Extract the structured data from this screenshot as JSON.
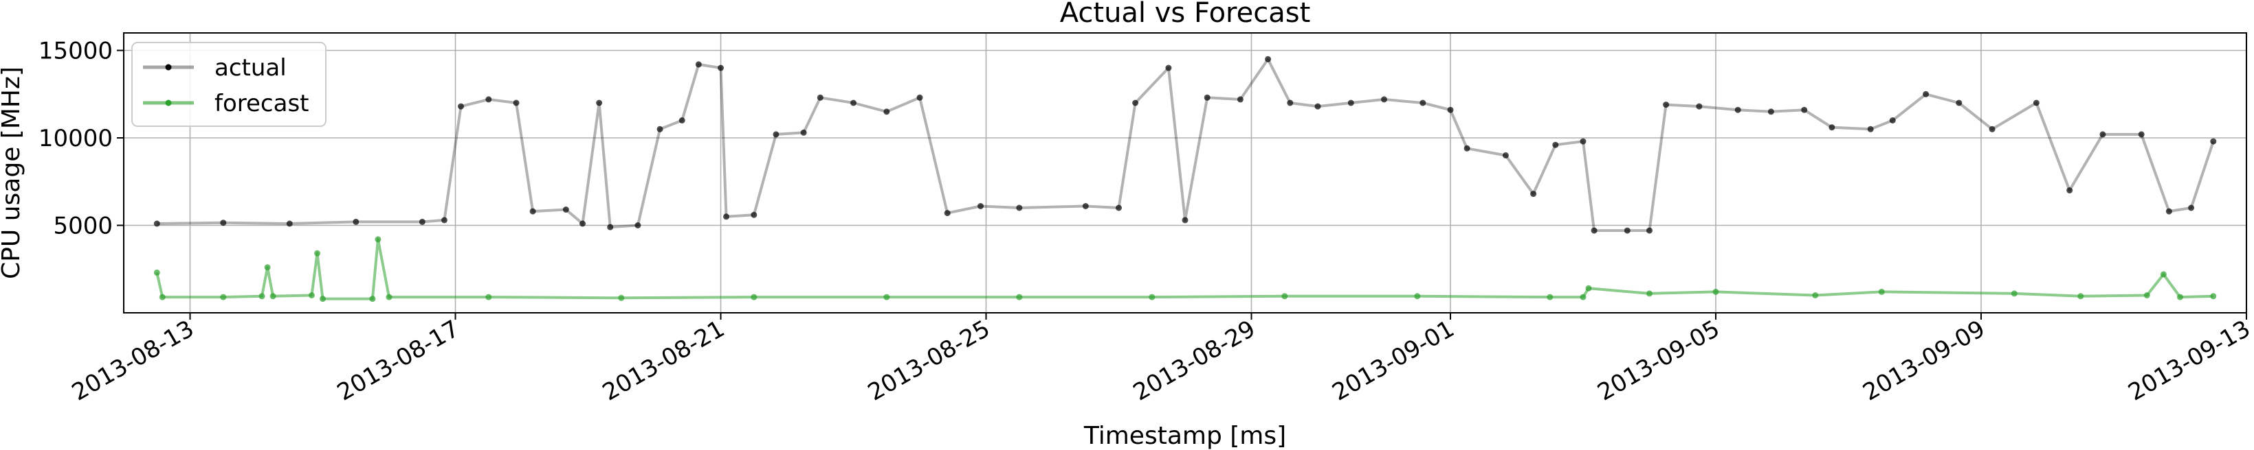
{
  "chart_data": {
    "type": "line",
    "title": "Actual vs Forecast",
    "xlabel": "Timestamp [ms]",
    "ylabel": "CPU usage [MHz]",
    "grid": true,
    "legend_position": "top-left",
    "x_ticks": [
      "2013-08-13",
      "2013-08-17",
      "2013-08-21",
      "2013-08-25",
      "2013-08-29",
      "2013-09-01",
      "2013-09-05",
      "2013-09-09",
      "2013-09-13"
    ],
    "y_ticks": [
      5000,
      10000,
      15000
    ],
    "ylim": [
      0,
      16000
    ],
    "xlim": [
      "2013-08-12",
      "2013-09-13"
    ],
    "series": [
      {
        "name": "actual",
        "color": "#000000",
        "points": [
          [
            "2013-08-12 12:00",
            5100
          ],
          [
            "2013-08-13 12:00",
            5150
          ],
          [
            "2013-08-14 12:00",
            5100
          ],
          [
            "2013-08-15 12:00",
            5200
          ],
          [
            "2013-08-16 12:00",
            5200
          ],
          [
            "2013-08-16 20:00",
            5300
          ],
          [
            "2013-08-17 02:00",
            11800
          ],
          [
            "2013-08-17 12:00",
            12200
          ],
          [
            "2013-08-17 22:00",
            12000
          ],
          [
            "2013-08-18 04:00",
            5800
          ],
          [
            "2013-08-18 16:00",
            5900
          ],
          [
            "2013-08-18 22:00",
            5100
          ],
          [
            "2013-08-19 04:00",
            12000
          ],
          [
            "2013-08-19 08:00",
            4900
          ],
          [
            "2013-08-19 18:00",
            5000
          ],
          [
            "2013-08-20 02:00",
            10500
          ],
          [
            "2013-08-20 10:00",
            11000
          ],
          [
            "2013-08-20 16:00",
            14200
          ],
          [
            "2013-08-21 00:00",
            14000
          ],
          [
            "2013-08-21 02:00",
            5500
          ],
          [
            "2013-08-21 12:00",
            5600
          ],
          [
            "2013-08-21 20:00",
            10200
          ],
          [
            "2013-08-22 06:00",
            10300
          ],
          [
            "2013-08-22 12:00",
            12300
          ],
          [
            "2013-08-23 00:00",
            12000
          ],
          [
            "2013-08-23 12:00",
            11500
          ],
          [
            "2013-08-24 00:00",
            12300
          ],
          [
            "2013-08-24 10:00",
            5700
          ],
          [
            "2013-08-24 22:00",
            6100
          ],
          [
            "2013-08-25 12:00",
            6000
          ],
          [
            "2013-08-26 12:00",
            6100
          ],
          [
            "2013-08-27 00:00",
            6000
          ],
          [
            "2013-08-27 06:00",
            12000
          ],
          [
            "2013-08-27 18:00",
            14000
          ],
          [
            "2013-08-28 00:00",
            5300
          ],
          [
            "2013-08-28 08:00",
            12300
          ],
          [
            "2013-08-28 20:00",
            12200
          ],
          [
            "2013-08-29 06:00",
            14500
          ],
          [
            "2013-08-29 14:00",
            12000
          ],
          [
            "2013-08-30 00:00",
            11800
          ],
          [
            "2013-08-30 12:00",
            12000
          ],
          [
            "2013-08-31 00:00",
            12200
          ],
          [
            "2013-08-31 14:00",
            12000
          ],
          [
            "2013-09-01 00:00",
            11600
          ],
          [
            "2013-09-01 06:00",
            9400
          ],
          [
            "2013-09-01 20:00",
            9000
          ],
          [
            "2013-09-02 06:00",
            6800
          ],
          [
            "2013-09-02 14:00",
            9600
          ],
          [
            "2013-09-03 00:00",
            9800
          ],
          [
            "2013-09-03 04:00",
            4700
          ],
          [
            "2013-09-03 16:00",
            4700
          ],
          [
            "2013-09-04 00:00",
            4700
          ],
          [
            "2013-09-04 06:00",
            11900
          ],
          [
            "2013-09-04 18:00",
            11800
          ],
          [
            "2013-09-05 08:00",
            11600
          ],
          [
            "2013-09-05 20:00",
            11500
          ],
          [
            "2013-09-06 08:00",
            11600
          ],
          [
            "2013-09-06 18:00",
            10600
          ],
          [
            "2013-09-07 08:00",
            10500
          ],
          [
            "2013-09-07 16:00",
            11000
          ],
          [
            "2013-09-08 04:00",
            12500
          ],
          [
            "2013-09-08 16:00",
            12000
          ],
          [
            "2013-09-09 04:00",
            10500
          ],
          [
            "2013-09-09 20:00",
            12000
          ],
          [
            "2013-09-10 08:00",
            7000
          ],
          [
            "2013-09-10 20:00",
            10200
          ],
          [
            "2013-09-11 10:00",
            10200
          ],
          [
            "2013-09-11 20:00",
            5800
          ],
          [
            "2013-09-12 04:00",
            6000
          ],
          [
            "2013-09-12 12:00",
            9800
          ]
        ]
      },
      {
        "name": "forecast",
        "color": "#2ca02c",
        "points": [
          [
            "2013-08-12 12:00",
            2300
          ],
          [
            "2013-08-12 14:00",
            900
          ],
          [
            "2013-08-13 12:00",
            900
          ],
          [
            "2013-08-14 02:00",
            950
          ],
          [
            "2013-08-14 04:00",
            2600
          ],
          [
            "2013-08-14 06:00",
            950
          ],
          [
            "2013-08-14 20:00",
            1000
          ],
          [
            "2013-08-14 22:00",
            3400
          ],
          [
            "2013-08-15 00:00",
            800
          ],
          [
            "2013-08-15 18:00",
            800
          ],
          [
            "2013-08-15 20:00",
            4200
          ],
          [
            "2013-08-16 00:00",
            900
          ],
          [
            "2013-08-17 12:00",
            900
          ],
          [
            "2013-08-19 12:00",
            850
          ],
          [
            "2013-08-21 12:00",
            900
          ],
          [
            "2013-08-23 12:00",
            900
          ],
          [
            "2013-08-25 12:00",
            900
          ],
          [
            "2013-08-27 12:00",
            900
          ],
          [
            "2013-08-29 12:00",
            950
          ],
          [
            "2013-08-31 12:00",
            950
          ],
          [
            "2013-09-02 12:00",
            900
          ],
          [
            "2013-09-03 00:00",
            900
          ],
          [
            "2013-09-03 02:00",
            1400
          ],
          [
            "2013-09-04 00:00",
            1100
          ],
          [
            "2013-09-05 00:00",
            1200
          ],
          [
            "2013-09-06 12:00",
            1000
          ],
          [
            "2013-09-07 12:00",
            1200
          ],
          [
            "2013-09-09 12:00",
            1100
          ],
          [
            "2013-09-10 12:00",
            950
          ],
          [
            "2013-09-11 12:00",
            1000
          ],
          [
            "2013-09-11 18:00",
            2200
          ],
          [
            "2013-09-12 00:00",
            900
          ],
          [
            "2013-09-12 12:00",
            950
          ]
        ]
      }
    ]
  }
}
